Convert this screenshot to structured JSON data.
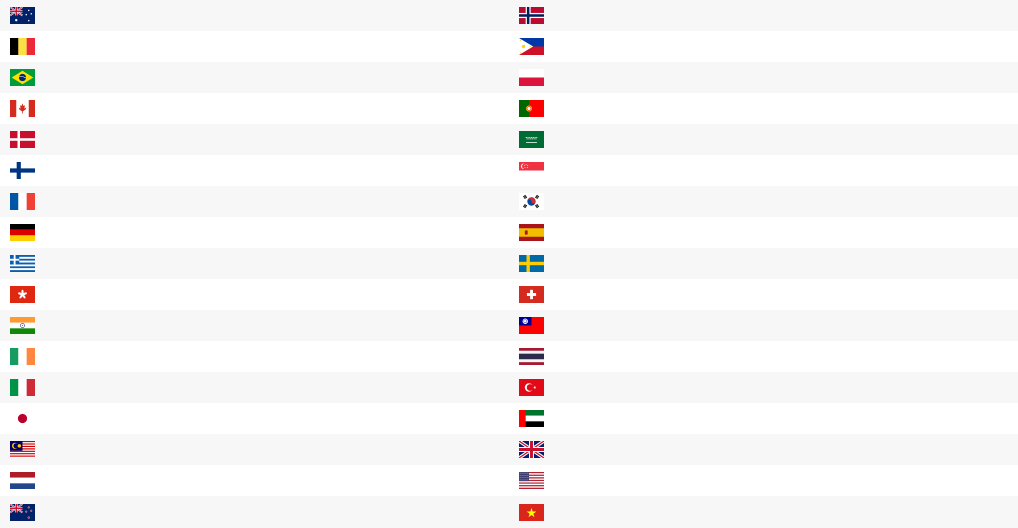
{
  "flags": {
    "left": [
      {
        "name": "flag-australia-icon"
      },
      {
        "name": "flag-belgium-icon"
      },
      {
        "name": "flag-brazil-icon"
      },
      {
        "name": "flag-canada-icon"
      },
      {
        "name": "flag-denmark-icon"
      },
      {
        "name": "flag-finland-icon"
      },
      {
        "name": "flag-france-icon"
      },
      {
        "name": "flag-germany-icon"
      },
      {
        "name": "flag-greece-icon"
      },
      {
        "name": "flag-hong-kong-icon"
      },
      {
        "name": "flag-india-icon"
      },
      {
        "name": "flag-ireland-icon"
      },
      {
        "name": "flag-italy-icon"
      },
      {
        "name": "flag-japan-icon"
      },
      {
        "name": "flag-malaysia-icon"
      },
      {
        "name": "flag-netherlands-icon"
      },
      {
        "name": "flag-new-zealand-icon"
      }
    ],
    "right": [
      {
        "name": "flag-norway-icon"
      },
      {
        "name": "flag-philippines-icon"
      },
      {
        "name": "flag-poland-icon"
      },
      {
        "name": "flag-portugal-icon"
      },
      {
        "name": "flag-saudi-arabia-icon"
      },
      {
        "name": "flag-singapore-icon"
      },
      {
        "name": "flag-south-korea-icon"
      },
      {
        "name": "flag-spain-icon"
      },
      {
        "name": "flag-sweden-icon"
      },
      {
        "name": "flag-switzerland-icon"
      },
      {
        "name": "flag-taiwan-icon"
      },
      {
        "name": "flag-thailand-icon"
      },
      {
        "name": "flag-turkey-icon"
      },
      {
        "name": "flag-uae-icon"
      },
      {
        "name": "flag-united-kingdom-icon"
      },
      {
        "name": "flag-united-states-icon"
      },
      {
        "name": "flag-vietnam-icon"
      }
    ]
  },
  "colors": {
    "row_alt": "#f7f7f7",
    "row_base": "#ffffff"
  }
}
